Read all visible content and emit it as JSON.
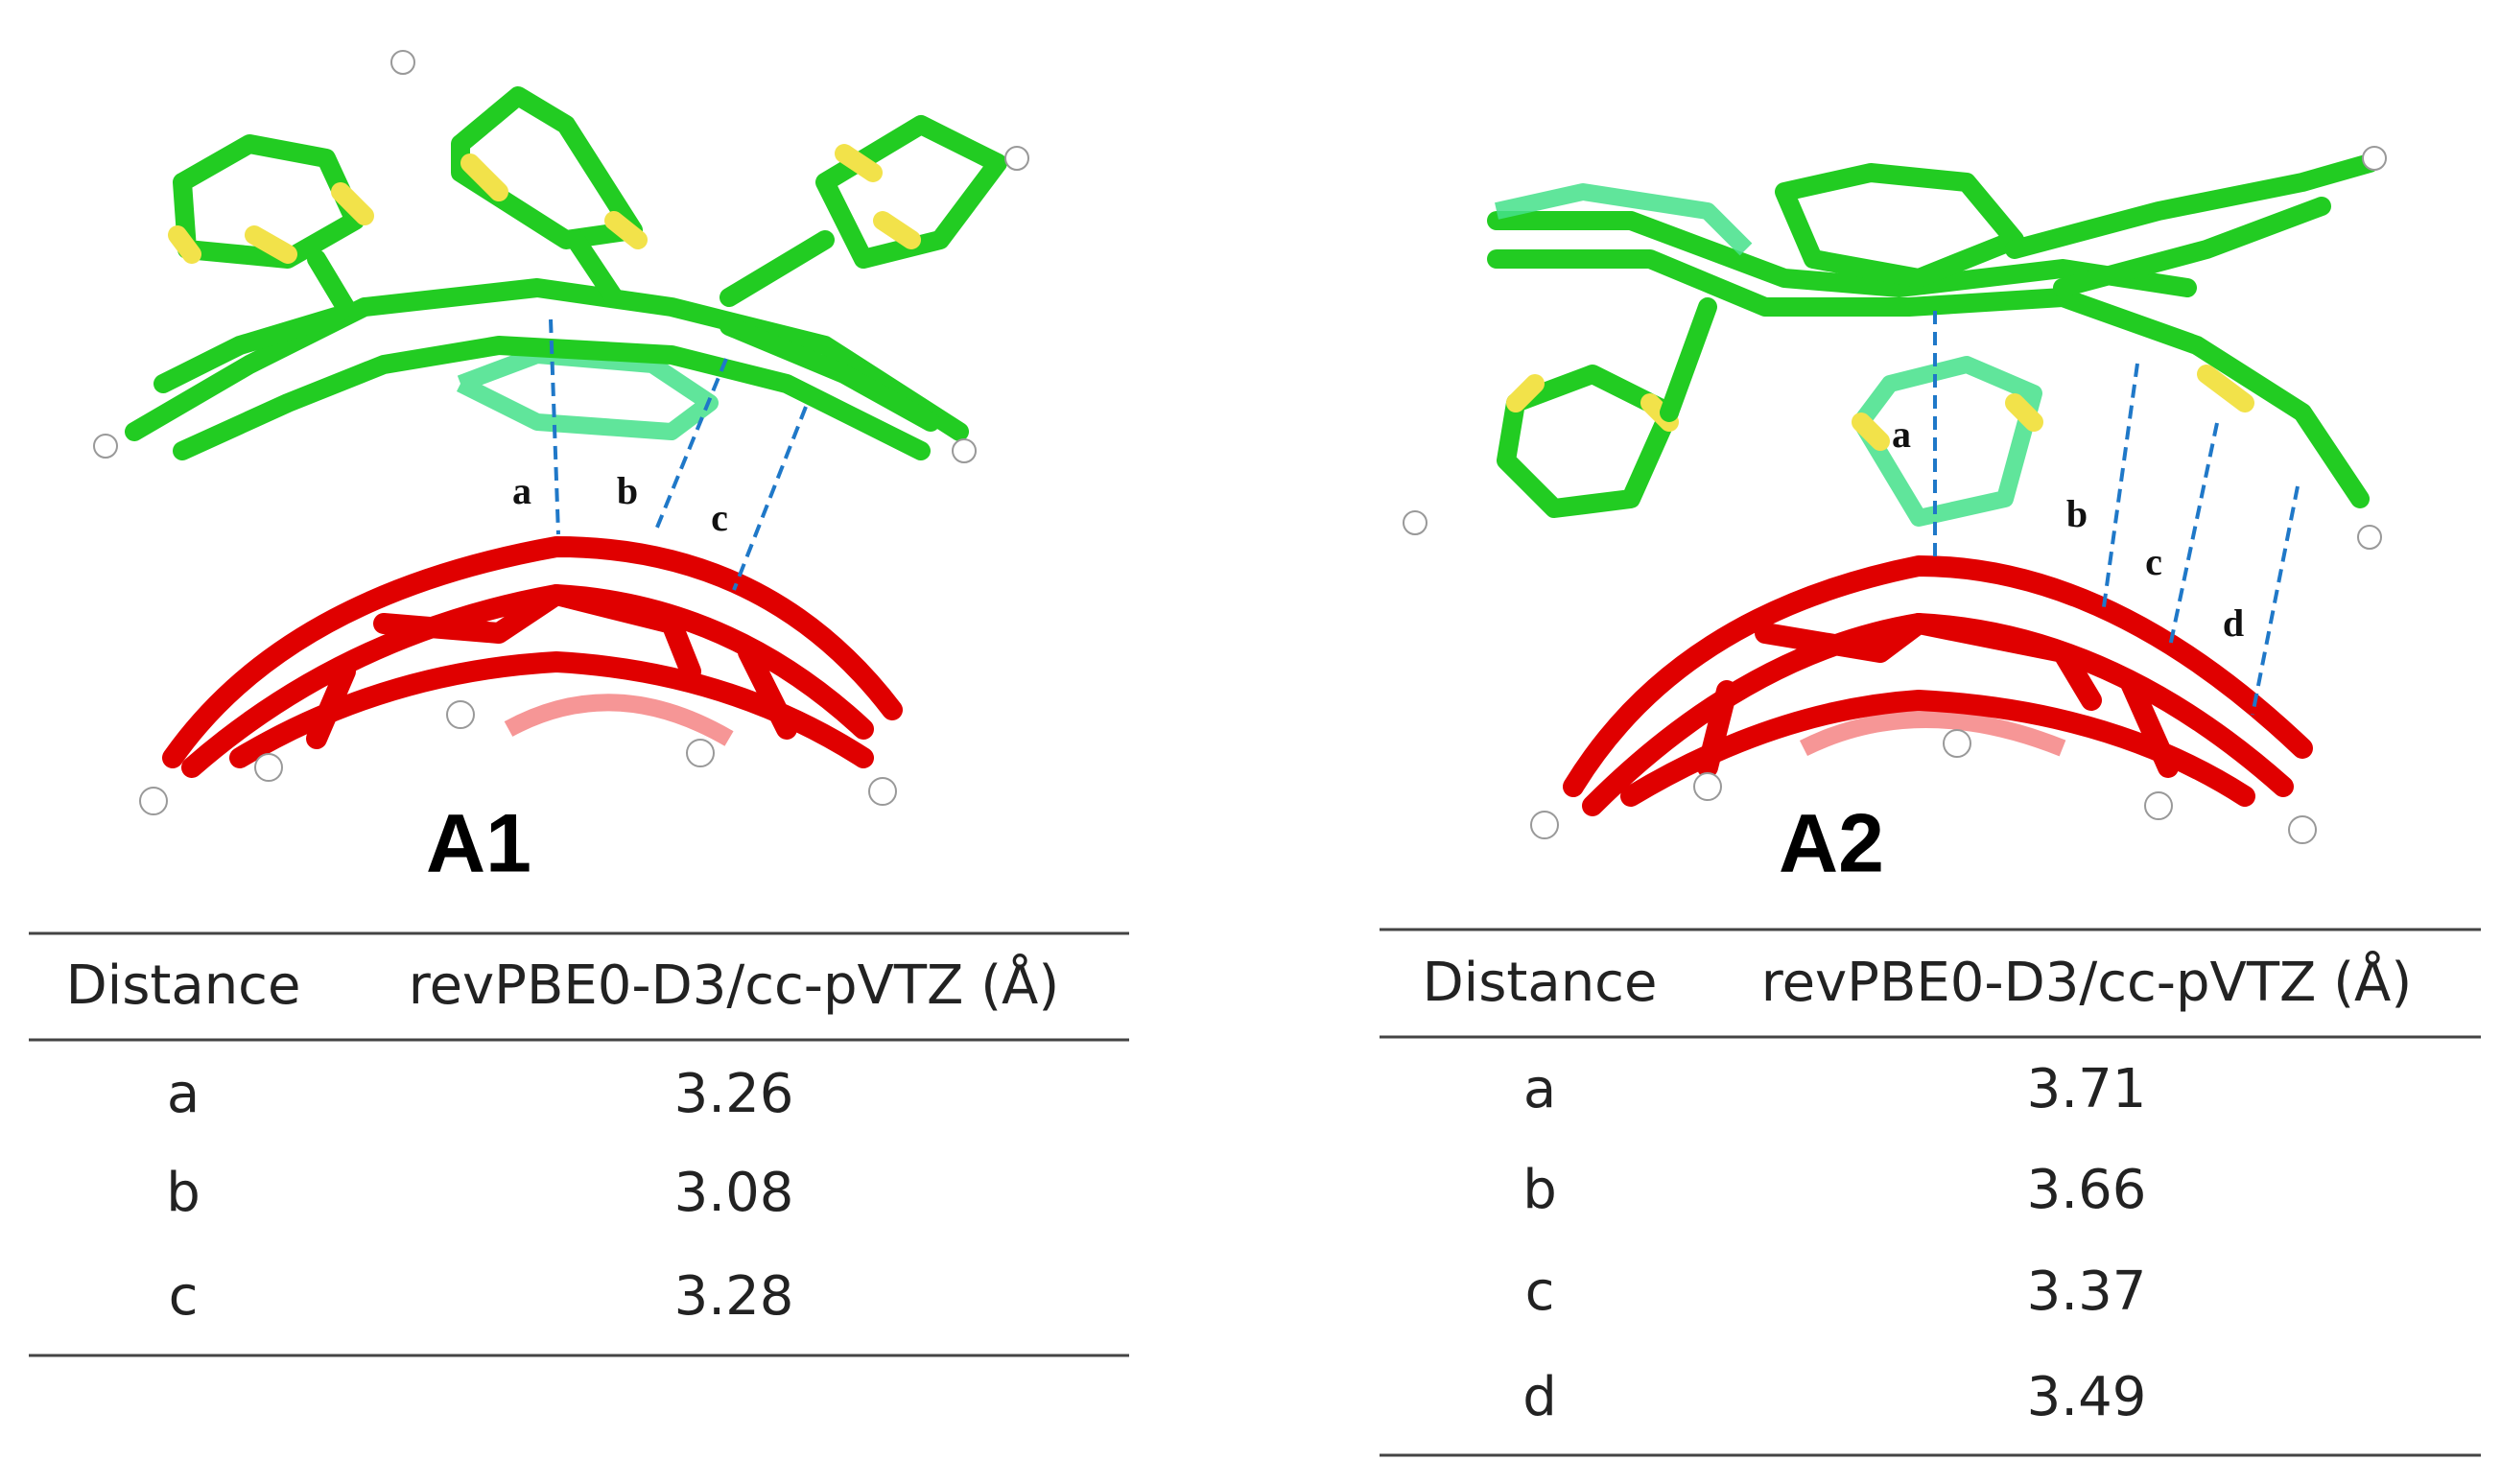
{
  "panels": [
    {
      "title": "A1",
      "distance_labels": [
        "a",
        "b",
        "c"
      ],
      "table": {
        "header": [
          "Distance",
          "revPBE0-D3/cc-pVTZ (Å)"
        ],
        "rows": [
          [
            "a",
            "3.26"
          ],
          [
            "b",
            "3.08"
          ],
          [
            "c",
            "3.28"
          ]
        ]
      }
    },
    {
      "title": "A2",
      "distance_labels": [
        "a",
        "b",
        "c",
        "d"
      ],
      "table": {
        "header": [
          "Distance",
          "revPBE0-D3/cc-pVTZ (Å)"
        ],
        "rows": [
          [
            "a",
            "3.71"
          ],
          [
            "b",
            "3.66"
          ],
          [
            "c",
            "3.37"
          ],
          [
            "d",
            "3.49"
          ]
        ]
      }
    }
  ]
}
